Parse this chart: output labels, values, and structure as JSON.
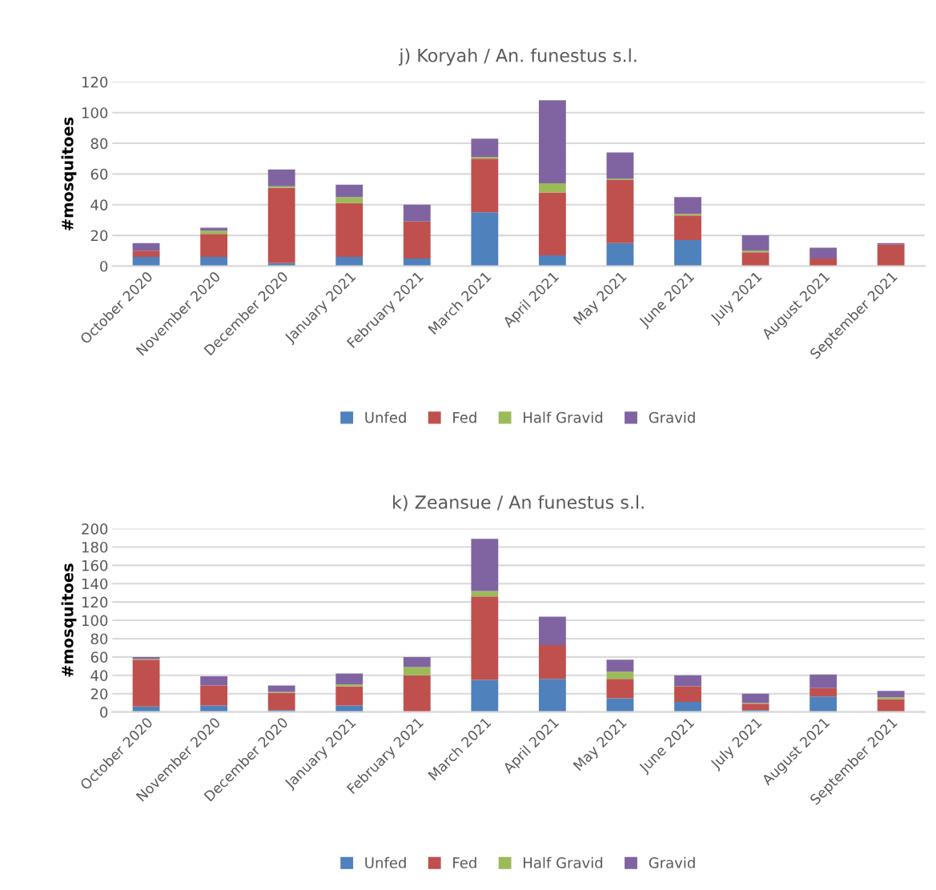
{
  "chart_data": [
    {
      "type": "bar",
      "stacked": true,
      "title": "j) Koryah / An. funestus s.l.",
      "ylabel": "#mosquitoes",
      "categories": [
        "October 2020",
        "November 2020",
        "December 2020",
        "January 2021",
        "February 2021",
        "March 2021",
        "April 2021",
        "May 2021",
        "June 2021",
        "July 2021",
        "August 2021",
        "September 2021"
      ],
      "series": [
        {
          "name": "Unfed",
          "color": "#4f81bd",
          "values": [
            6,
            6,
            2,
            6,
            5,
            35,
            7,
            15,
            17,
            0,
            0,
            0
          ]
        },
        {
          "name": "Fed",
          "color": "#c0504d",
          "values": [
            4,
            15,
            49,
            35,
            24,
            35,
            41,
            41,
            16,
            9,
            5,
            14
          ]
        },
        {
          "name": "Half Gravid",
          "color": "#9bbb59",
          "values": [
            0,
            2,
            1,
            4,
            0,
            1,
            6,
            1,
            1,
            1,
            0,
            0
          ]
        },
        {
          "name": "Gravid",
          "color": "#8064a2",
          "values": [
            5,
            2,
            11,
            8,
            11,
            12,
            54,
            17,
            11,
            10,
            7,
            1
          ]
        }
      ],
      "ylim": [
        0,
        120
      ],
      "yticks": [
        0,
        20,
        40,
        60,
        80,
        100,
        120
      ],
      "grid": "y",
      "legend": "bottom"
    },
    {
      "type": "bar",
      "stacked": true,
      "title": "k) Zeansue / An funestus s.l.",
      "ylabel": "#mosquitoes",
      "categories": [
        "October 2020",
        "November 2020",
        "December 2020",
        "January 2021",
        "February 2021",
        "March 2021",
        "April 2021",
        "May 2021",
        "June 2021",
        "July 2021",
        "August 2021",
        "September 2021"
      ],
      "series": [
        {
          "name": "Unfed",
          "color": "#4f81bd",
          "values": [
            6,
            7,
            2,
            7,
            0,
            35,
            36,
            15,
            11,
            2,
            17,
            0
          ]
        },
        {
          "name": "Fed",
          "color": "#c0504d",
          "values": [
            51,
            22,
            19,
            21,
            40,
            91,
            37,
            21,
            17,
            7,
            9,
            14
          ]
        },
        {
          "name": "Half Gravid",
          "color": "#9bbb59",
          "values": [
            1,
            0,
            1,
            2,
            9,
            6,
            0,
            8,
            0,
            1,
            0,
            2
          ]
        },
        {
          "name": "Gravid",
          "color": "#8064a2",
          "values": [
            2,
            10,
            7,
            12,
            11,
            57,
            31,
            13,
            12,
            10,
            15,
            7
          ]
        }
      ],
      "ylim": [
        0,
        200
      ],
      "yticks": [
        0,
        20,
        40,
        60,
        80,
        100,
        120,
        140,
        160,
        180,
        200
      ],
      "grid": "y",
      "legend": "bottom"
    }
  ]
}
